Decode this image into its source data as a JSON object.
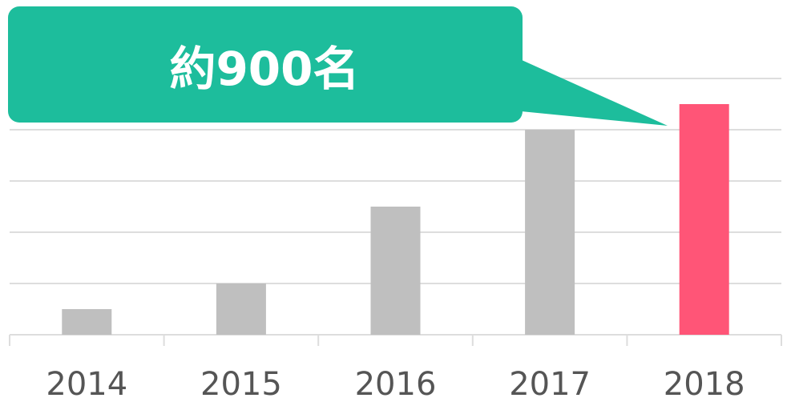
{
  "chart_data": {
    "type": "bar",
    "annotation": "約900名",
    "categories": [
      "2014",
      "2015",
      "2016",
      "2017",
      "2018"
    ],
    "values": [
      100,
      200,
      500,
      800,
      900
    ],
    "colors": [
      "#bfbfbf",
      "#bfbfbf",
      "#bfbfbf",
      "#bfbfbf",
      "#ff5577"
    ],
    "ylim": [
      0,
      1000
    ],
    "yticks": [
      0,
      200,
      400,
      600,
      800,
      1000
    ],
    "grid": true,
    "annotation_color": "#1dbd9c"
  }
}
